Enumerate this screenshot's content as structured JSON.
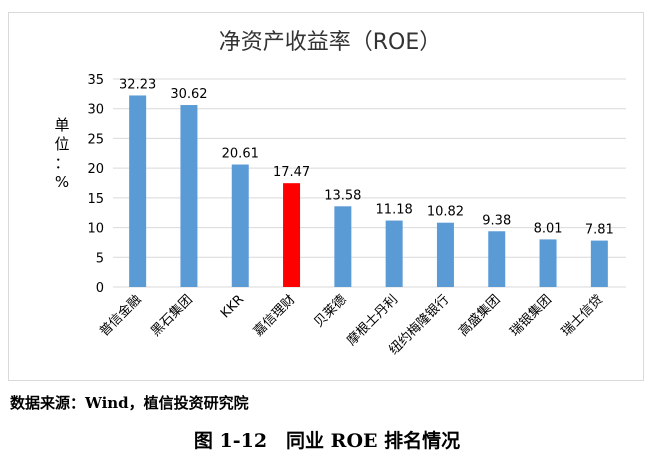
{
  "chart_data": {
    "type": "bar",
    "title": "净资产收益率（ROE）",
    "ylabel": "单位：%",
    "xlabel": "",
    "categories": [
      "普信金融",
      "黑石集团",
      "KKR",
      "嘉信理财",
      "贝莱德",
      "摩根士丹利",
      "纽约梅隆银行",
      "高盛集团",
      "瑞银集团",
      "瑞士信贷"
    ],
    "values": [
      32.23,
      30.62,
      20.61,
      17.47,
      13.58,
      11.18,
      10.82,
      9.38,
      8.01,
      7.81
    ],
    "data_labels": [
      "32.23",
      "30.62",
      "20.61",
      "17.47",
      "13.58",
      "11.18",
      "10.82",
      "9.38",
      "8.01",
      "7.81"
    ],
    "ylim": [
      0,
      35
    ],
    "yticks": [
      0,
      5,
      10,
      15,
      20,
      25,
      30,
      35
    ],
    "grid": true,
    "legend": "none",
    "colors": {
      "default": "#5b9bd5",
      "highlight": "#ff0000",
      "grid": "#d9d9d9"
    },
    "highlight_index": 3
  },
  "source": "数据来源：Wind，植信投资研究院",
  "caption": "图 1-12　同业 ROE 排名情况"
}
